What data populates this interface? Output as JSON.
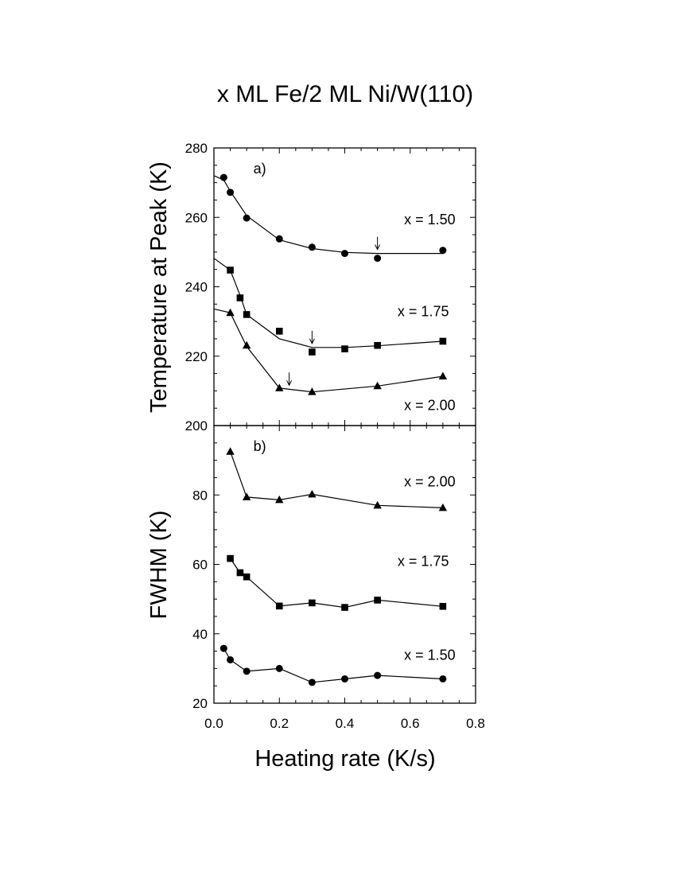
{
  "figure": {
    "title": "x ML Fe/2 ML Ni/W(110)",
    "xlabel": "Heating rate (K/s)"
  },
  "chart_data": [
    {
      "panel": "a)",
      "type": "scatter",
      "title": "",
      "xlabel": "Heating rate (K/s)",
      "ylabel": "Temperature at Peak (K)",
      "xlim": [
        0.0,
        0.8
      ],
      "ylim": [
        200,
        280
      ],
      "xticks": [
        "0.0",
        "0.2",
        "0.4",
        "0.6",
        "0.8"
      ],
      "yticks": [
        "200",
        "220",
        "240",
        "260",
        "280"
      ],
      "series": [
        {
          "name": "x = 1.50",
          "marker": "circle",
          "x": [
            0.03,
            0.05,
            0.1,
            0.2,
            0.3,
            0.4,
            0.5,
            0.7
          ],
          "y": [
            271.5,
            267.2,
            259.8,
            253.8,
            251.4,
            249.6,
            248.2,
            250.5
          ],
          "fit_x": [
            0.0,
            0.03,
            0.05,
            0.1,
            0.2,
            0.3,
            0.4,
            0.5,
            0.7
          ],
          "fit_y": [
            272.0,
            270.8,
            267.5,
            260.5,
            253.5,
            251.0,
            249.9,
            249.6,
            249.6
          ],
          "arrow_x": 0.5
        },
        {
          "name": "x = 1.75",
          "marker": "square",
          "x": [
            0.05,
            0.08,
            0.1,
            0.2,
            0.3,
            0.4,
            0.5,
            0.7
          ],
          "y": [
            244.8,
            236.8,
            232.0,
            227.2,
            221.2,
            222.1,
            223.1,
            224.3
          ],
          "fit_x": [
            0.0,
            0.05,
            0.08,
            0.1,
            0.2,
            0.3,
            0.4,
            0.5,
            0.7
          ],
          "fit_y": [
            248.2,
            244.8,
            237.5,
            232.0,
            225.0,
            222.5,
            222.5,
            223.0,
            224.3
          ],
          "arrow_x": 0.3
        },
        {
          "name": "x = 2.00",
          "marker": "triangle",
          "x": [
            0.05,
            0.1,
            0.2,
            0.3,
            0.5,
            0.7
          ],
          "y": [
            232.5,
            223.1,
            210.8,
            209.7,
            211.4,
            214.2
          ],
          "fit_x": [
            0.0,
            0.05,
            0.1,
            0.2,
            0.3,
            0.5,
            0.7
          ],
          "fit_y": [
            233.6,
            232.5,
            222.8,
            210.8,
            209.7,
            211.4,
            214.2
          ],
          "arrow_x": 0.23
        }
      ],
      "annotations": [
        "a)"
      ]
    },
    {
      "panel": "b)",
      "type": "line",
      "title": "",
      "xlabel": "Heating rate (K/s)",
      "ylabel": "FWHM (K)",
      "xlim": [
        0.0,
        0.8
      ],
      "ylim": [
        20,
        100
      ],
      "xticks": [
        "0.0",
        "0.2",
        "0.4",
        "0.6",
        "0.8"
      ],
      "yticks": [
        "20",
        "40",
        "60",
        "80"
      ],
      "series": [
        {
          "name": "x = 2.00",
          "marker": "triangle",
          "x": [
            0.05,
            0.1,
            0.2,
            0.3,
            0.5,
            0.7
          ],
          "y": [
            92.5,
            79.4,
            78.6,
            80.2,
            77.0,
            76.3
          ]
        },
        {
          "name": "x = 1.75",
          "marker": "square",
          "x": [
            0.05,
            0.08,
            0.1,
            0.2,
            0.3,
            0.4,
            0.5,
            0.7
          ],
          "y": [
            61.7,
            57.6,
            56.4,
            48.0,
            48.9,
            47.6,
            49.7,
            47.9
          ]
        },
        {
          "name": "x = 1.50",
          "marker": "circle",
          "x": [
            0.03,
            0.05,
            0.1,
            0.2,
            0.3,
            0.4,
            0.5,
            0.7
          ],
          "y": [
            35.8,
            32.5,
            29.2,
            30.0,
            26.0,
            27.0,
            28.0,
            27.0
          ]
        }
      ],
      "annotations": [
        "b)"
      ]
    }
  ]
}
